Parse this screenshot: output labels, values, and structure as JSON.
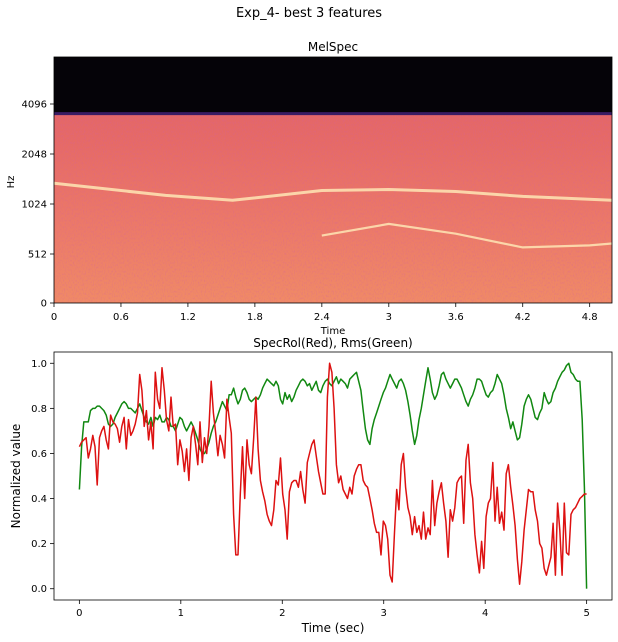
{
  "figure": {
    "suptitle": "Exp_4- best 3 features"
  },
  "colors": {
    "rolloff": "#dd1111",
    "rms": "#118811",
    "background": "#ffffff",
    "spectrogram_top": "#050308",
    "spectrogram_boundary": "#3a1c63",
    "spectrogram_mid": "#dd5a5a",
    "spectrogram_low": "#f08a66",
    "spectrogram_highlight": "#fde0b0"
  },
  "chart_data": [
    {
      "type": "heatmap",
      "title": "MelSpec",
      "xlabel": "Time",
      "ylabel": "Hz",
      "xlim": [
        0,
        5.0
      ],
      "xticks": [
        "0",
        "0.6",
        "1.2",
        "1.8",
        "2.4",
        "3",
        "3.6",
        "4.2",
        "4.8"
      ],
      "xtick_values": [
        0,
        0.6,
        1.2,
        1.8,
        2.4,
        3.0,
        3.6,
        4.2,
        4.8
      ],
      "yticks": [
        "0",
        "512",
        "1024",
        "2048",
        "4096"
      ],
      "ytick_hz": [
        0,
        512,
        1024,
        2048,
        4096
      ],
      "energy_cutoff_hz": 3700,
      "harmonic_lines": [
        {
          "points": [
            [
              0,
              1450
            ],
            [
              1.0,
              1200
            ],
            [
              1.6,
              1100
            ],
            [
              2.4,
              1300
            ],
            [
              3.0,
              1320
            ],
            [
              3.6,
              1280
            ],
            [
              4.2,
              1180
            ],
            [
              5.0,
              1100
            ]
          ]
        },
        {
          "points": [
            [
              2.4,
              700
            ],
            [
              3.0,
              820
            ],
            [
              3.6,
              720
            ],
            [
              4.2,
              580
            ],
            [
              4.8,
              600
            ],
            [
              5.0,
              620
            ]
          ]
        }
      ]
    },
    {
      "type": "line",
      "title": "SpecRol(Red), Rms(Green)",
      "xlabel": "Time (sec)",
      "ylabel": "Normalized value",
      "xlim": [
        -0.25,
        5.25
      ],
      "ylim": [
        -0.05,
        1.05
      ],
      "xticks": [
        "0",
        "1",
        "2",
        "3",
        "4",
        "5"
      ],
      "yticks": [
        "0.0",
        "0.2",
        "0.4",
        "0.6",
        "0.8",
        "1.0"
      ],
      "x_step": 0.0253,
      "series": [
        {
          "name": "Rms",
          "color": "#118811",
          "values": [
            0.44,
            0.63,
            0.74,
            0.74,
            0.74,
            0.79,
            0.8,
            0.8,
            0.81,
            0.81,
            0.8,
            0.79,
            0.77,
            0.73,
            0.72,
            0.73,
            0.76,
            0.78,
            0.8,
            0.82,
            0.83,
            0.82,
            0.8,
            0.8,
            0.79,
            0.78,
            0.8,
            0.82,
            0.79,
            0.76,
            0.74,
            0.73,
            0.76,
            0.72,
            0.76,
            0.75,
            0.77,
            0.74,
            0.74,
            0.76,
            0.75,
            0.72,
            0.72,
            0.7,
            0.73,
            0.76,
            0.75,
            0.72,
            0.7,
            0.72,
            0.74,
            0.72,
            0.69,
            0.66,
            0.62,
            0.6,
            0.6,
            0.62,
            0.65,
            0.69,
            0.72,
            0.74,
            0.77,
            0.8,
            0.83,
            0.81,
            0.79,
            0.86,
            0.86,
            0.89,
            0.85,
            0.82,
            0.84,
            0.88,
            0.89,
            0.87,
            0.84,
            0.83,
            0.84,
            0.85,
            0.84,
            0.86,
            0.89,
            0.91,
            0.93,
            0.92,
            0.91,
            0.9,
            0.92,
            0.9,
            0.84,
            0.82,
            0.87,
            0.84,
            0.86,
            0.83,
            0.85,
            0.88,
            0.9,
            0.92,
            0.93,
            0.92,
            0.9,
            0.91,
            0.88,
            0.9,
            0.92,
            0.88,
            0.87,
            0.9,
            0.92,
            0.93,
            0.91,
            0.9,
            0.92,
            0.94,
            0.91,
            0.93,
            0.92,
            0.91,
            0.89,
            0.93,
            0.94,
            0.95,
            0.96,
            0.92,
            0.88,
            0.79,
            0.71,
            0.66,
            0.64,
            0.71,
            0.75,
            0.78,
            0.81,
            0.84,
            0.87,
            0.89,
            0.92,
            0.95,
            0.93,
            0.91,
            0.89,
            0.92,
            0.93,
            0.91,
            0.88,
            0.83,
            0.77,
            0.7,
            0.64,
            0.68,
            0.75,
            0.8,
            0.86,
            0.92,
            0.98,
            0.93,
            0.87,
            0.84,
            0.86,
            0.9,
            0.95,
            0.96,
            0.93,
            0.91,
            0.89,
            0.91,
            0.93,
            0.93,
            0.91,
            0.89,
            0.86,
            0.83,
            0.81,
            0.84,
            0.86,
            0.89,
            0.93,
            0.93,
            0.92,
            0.89,
            0.86,
            0.85,
            0.87,
            0.88,
            0.91,
            0.95,
            0.93,
            0.91,
            0.86,
            0.8,
            0.76,
            0.71,
            0.74,
            0.7,
            0.66,
            0.67,
            0.73,
            0.81,
            0.84,
            0.86,
            0.84,
            0.8,
            0.76,
            0.75,
            0.78,
            0.8,
            0.87,
            0.84,
            0.82,
            0.83,
            0.87,
            0.89,
            0.92,
            0.94,
            0.96,
            0.97,
            0.99,
            1.0,
            0.96,
            0.95,
            0.93,
            0.92,
            0.92,
            0.75,
            0.45,
            0.0
          ],
          "x_end": 5.0
        },
        {
          "name": "SpecRol",
          "color": "#dd1111",
          "values": [
            0.63,
            0.65,
            0.66,
            0.67,
            0.58,
            0.62,
            0.68,
            0.63,
            0.46,
            0.67,
            0.7,
            0.72,
            0.66,
            0.62,
            0.77,
            0.74,
            0.73,
            0.71,
            0.65,
            0.72,
            0.76,
            0.62,
            0.75,
            0.68,
            0.7,
            0.73,
            0.78,
            0.95,
            0.88,
            0.72,
            0.79,
            0.66,
            0.74,
            0.62,
            0.96,
            0.84,
            0.8,
            0.98,
            0.88,
            0.75,
            0.7,
            0.85,
            0.72,
            0.73,
            0.55,
            0.66,
            0.61,
            0.52,
            0.62,
            0.48,
            0.67,
            0.72,
            0.64,
            0.55,
            0.74,
            0.56,
            0.67,
            0.6,
            0.72,
            0.92,
            0.78,
            0.69,
            0.59,
            0.68,
            0.64,
            0.58,
            0.84,
            0.76,
            0.69,
            0.33,
            0.15,
            0.15,
            0.42,
            0.63,
            0.4,
            0.66,
            0.55,
            0.51,
            0.67,
            0.85,
            0.62,
            0.48,
            0.43,
            0.39,
            0.33,
            0.3,
            0.28,
            0.35,
            0.48,
            0.46,
            0.58,
            0.42,
            0.35,
            0.22,
            0.43,
            0.47,
            0.48,
            0.48,
            0.45,
            0.52,
            0.44,
            0.38,
            0.56,
            0.6,
            0.64,
            0.66,
            0.59,
            0.52,
            0.47,
            0.42,
            0.42,
            0.85,
            1.0,
            0.96,
            0.8,
            0.55,
            0.47,
            0.5,
            0.44,
            0.42,
            0.4,
            0.45,
            0.42,
            0.5,
            0.53,
            0.55,
            0.55,
            0.48,
            0.46,
            0.45,
            0.4,
            0.35,
            0.29,
            0.25,
            0.25,
            0.15,
            0.3,
            0.28,
            0.22,
            0.06,
            0.03,
            0.25,
            0.44,
            0.35,
            0.55,
            0.6,
            0.45,
            0.36,
            0.32,
            0.24,
            0.32,
            0.25,
            0.28,
            0.22,
            0.34,
            0.22,
            0.27,
            0.24,
            0.48,
            0.28,
            0.38,
            0.43,
            0.47,
            0.38,
            0.3,
            0.14,
            0.35,
            0.3,
            0.36,
            0.47,
            0.49,
            0.5,
            0.29,
            0.57,
            0.64,
            0.47,
            0.4,
            0.24,
            0.15,
            0.07,
            0.21,
            0.09,
            0.32,
            0.38,
            0.4,
            0.56,
            0.3,
            0.45,
            0.29,
            0.34,
            0.26,
            0.51,
            0.55,
            0.45,
            0.37,
            0.28,
            0.13,
            0.02,
            0.12,
            0.26,
            0.35,
            0.44,
            0.43,
            0.43,
            0.35,
            0.3,
            0.2,
            0.18,
            0.09,
            0.06,
            0.1,
            0.14,
            0.29,
            0.06,
            0.38,
            0.26,
            0.06,
            0.38,
            0.16,
            0.15,
            0.33,
            0.35,
            0.36,
            0.38,
            0.4,
            0.41,
            0.42,
            0.42
          ],
          "x_end": 5.0
        }
      ]
    }
  ]
}
